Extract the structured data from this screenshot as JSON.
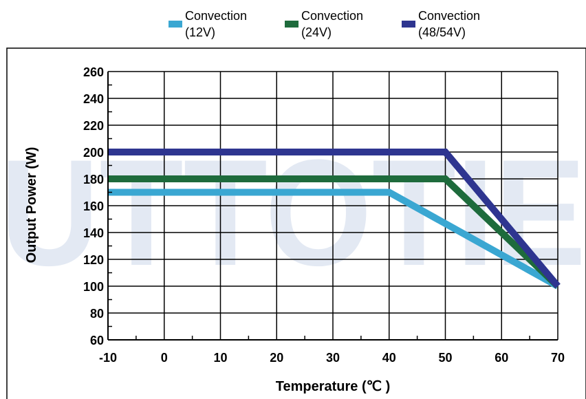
{
  "chart_data": {
    "type": "line",
    "xlabel": "Temperature (℃ )",
    "ylabel": "Output Power (W)",
    "xlim": [
      -10,
      70
    ],
    "ylim": [
      60,
      260
    ],
    "x_ticks": [
      -10,
      0,
      10,
      20,
      30,
      40,
      50,
      60,
      70
    ],
    "y_ticks": [
      60,
      80,
      100,
      120,
      140,
      160,
      180,
      200,
      220,
      240,
      260
    ],
    "grid": true,
    "legend_position": "top",
    "series": [
      {
        "name_line1": "Convection",
        "name_line2": "(12V)",
        "color": "#3aa7d2",
        "x": [
          -10,
          40,
          70
        ],
        "y": [
          170,
          170,
          100
        ]
      },
      {
        "name_line1": "Convection",
        "name_line2": "(24V)",
        "color": "#1e6b3c",
        "x": [
          -10,
          50,
          70
        ],
        "y": [
          180,
          180,
          100
        ]
      },
      {
        "name_line1": "Convection",
        "name_line2": "(48/54V)",
        "color": "#2e3590",
        "x": [
          -10,
          50,
          70
        ],
        "y": [
          200,
          200,
          100
        ]
      }
    ]
  },
  "watermark_color": "#e3e9f3"
}
